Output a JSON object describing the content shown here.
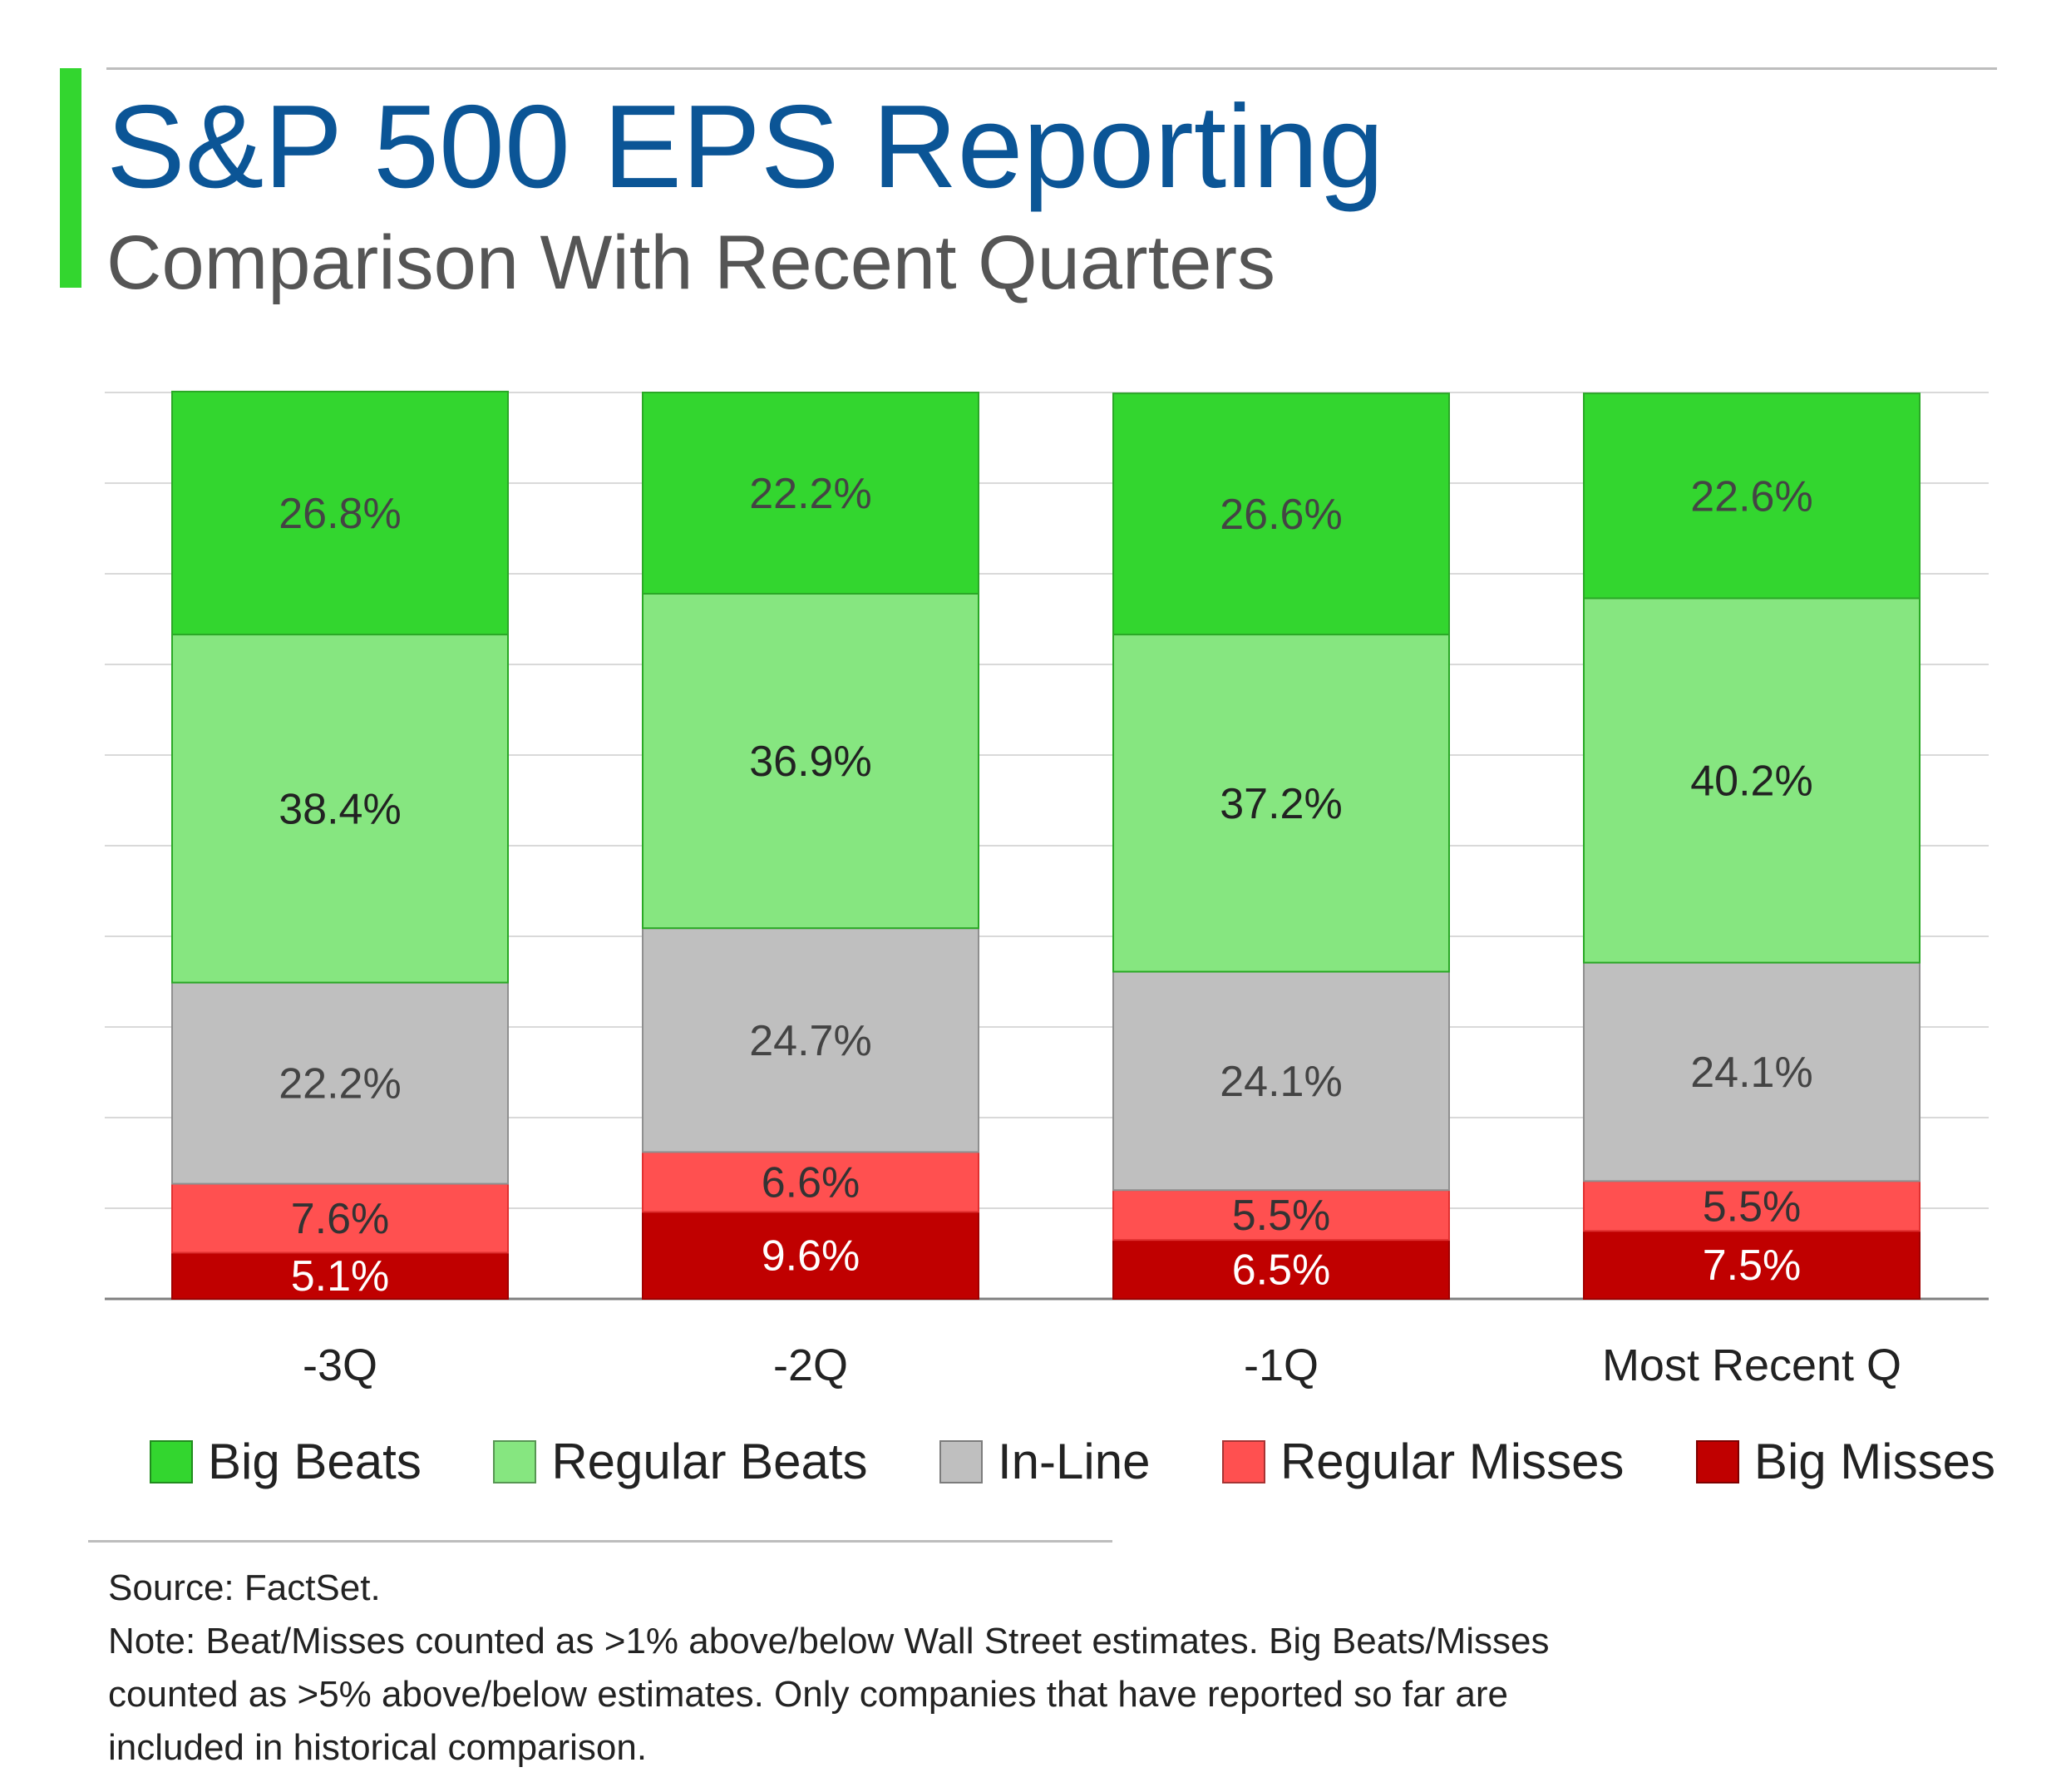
{
  "header": {
    "title": "S&P 500 EPS Reporting",
    "subtitle": "Comparison With Recent Quarters"
  },
  "colors": {
    "accent": "#33D62F",
    "title": "#0B5596",
    "subtitle": "#555555"
  },
  "chart_data": {
    "type": "bar",
    "stacked": true,
    "title": "S&P 500 EPS Reporting",
    "subtitle": "Comparison With Recent Quarters",
    "categories": [
      "-3Q",
      "-2Q",
      "-1Q",
      "Most Recent Q"
    ],
    "ylim": [
      0,
      100
    ],
    "grid": true,
    "legend_position": "bottom",
    "series": [
      {
        "name": "Big Misses",
        "color": "#C00000",
        "label_color": "#ffffff",
        "values": [
          5.1,
          9.6,
          6.5,
          7.5
        ],
        "labels": [
          "5.1%",
          "9.6%",
          "6.5%",
          "7.5%"
        ]
      },
      {
        "name": "Regular Misses",
        "color": "#FF5050",
        "label_color": "#333333",
        "values": [
          7.6,
          6.6,
          5.5,
          5.5
        ],
        "labels": [
          "7.6%",
          "6.6%",
          "5.5%",
          "5.5%"
        ]
      },
      {
        "name": "In-Line",
        "color": "#BFBFBF",
        "label_color": "#444444",
        "values": [
          22.2,
          24.7,
          24.1,
          24.1
        ],
        "labels": [
          "22.2%",
          "24.7%",
          "24.1%",
          "24.1%"
        ]
      },
      {
        "name": "Regular Beats",
        "color": "#86E680",
        "label_color": "#222222",
        "values": [
          38.4,
          36.9,
          37.2,
          40.2
        ],
        "labels": [
          "38.4%",
          "36.9%",
          "37.2%",
          "40.2%"
        ]
      },
      {
        "name": "Big Beats",
        "color": "#33D62F",
        "label_color": "#444444",
        "values": [
          26.8,
          22.2,
          26.6,
          22.6
        ],
        "labels": [
          "26.8%",
          "22.2%",
          "26.6%",
          "22.6%"
        ]
      }
    ],
    "legend": [
      {
        "name": "Big Beats",
        "color": "#33D62F"
      },
      {
        "name": "Regular Beats",
        "color": "#86E680"
      },
      {
        "name": "In-Line",
        "color": "#BFBFBF"
      },
      {
        "name": "Regular Misses",
        "color": "#FF5050"
      },
      {
        "name": "Big Misses",
        "color": "#C00000"
      }
    ]
  },
  "footer": {
    "source": "Source: FactSet.",
    "note_line1": "Note: Beat/Misses counted as >1% above/below Wall Street estimates. Big Beats/Misses",
    "note_line2": "counted as >5% above/below estimates. Only companies that have reported so far are",
    "note_line3": "included in historical comparison."
  }
}
